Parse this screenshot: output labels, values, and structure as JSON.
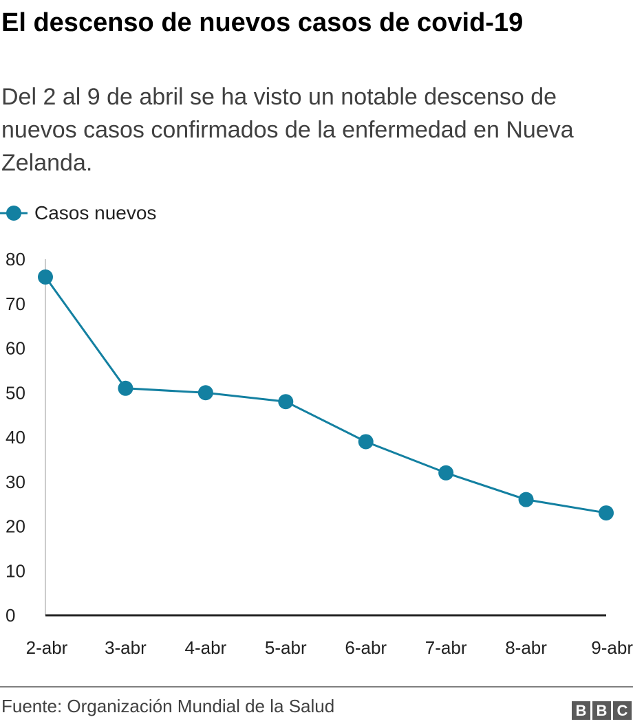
{
  "title": "El descenso de nuevos casos de covid-19",
  "subtitle": "Del 2 al 9 de abril se ha visto un notable descenso de nuevos casos confirmados de la enfermedad en Nueva Zelanda.",
  "source": "Fuente: Organización Mundial de la Salud",
  "logo": [
    "B",
    "B",
    "C"
  ],
  "colors": {
    "series": "#1380a1",
    "axis": "#222222",
    "grid": "#cccccc"
  },
  "chart_data": {
    "type": "line",
    "title": "El descenso de nuevos casos de covid-19",
    "xlabel": "",
    "ylabel": "",
    "categories": [
      "2-abr",
      "3-abr",
      "4-abr",
      "5-abr",
      "6-abr",
      "7-abr",
      "8-abr",
      "9-abr"
    ],
    "series": [
      {
        "name": "Casos nuevos",
        "values": [
          76,
          51,
          50,
          48,
          39,
          32,
          26,
          23
        ]
      }
    ],
    "yticks": [
      0,
      10,
      20,
      30,
      40,
      50,
      60,
      70,
      80
    ],
    "ylim": [
      0,
      80
    ],
    "grid": false,
    "legend": "top-left"
  }
}
